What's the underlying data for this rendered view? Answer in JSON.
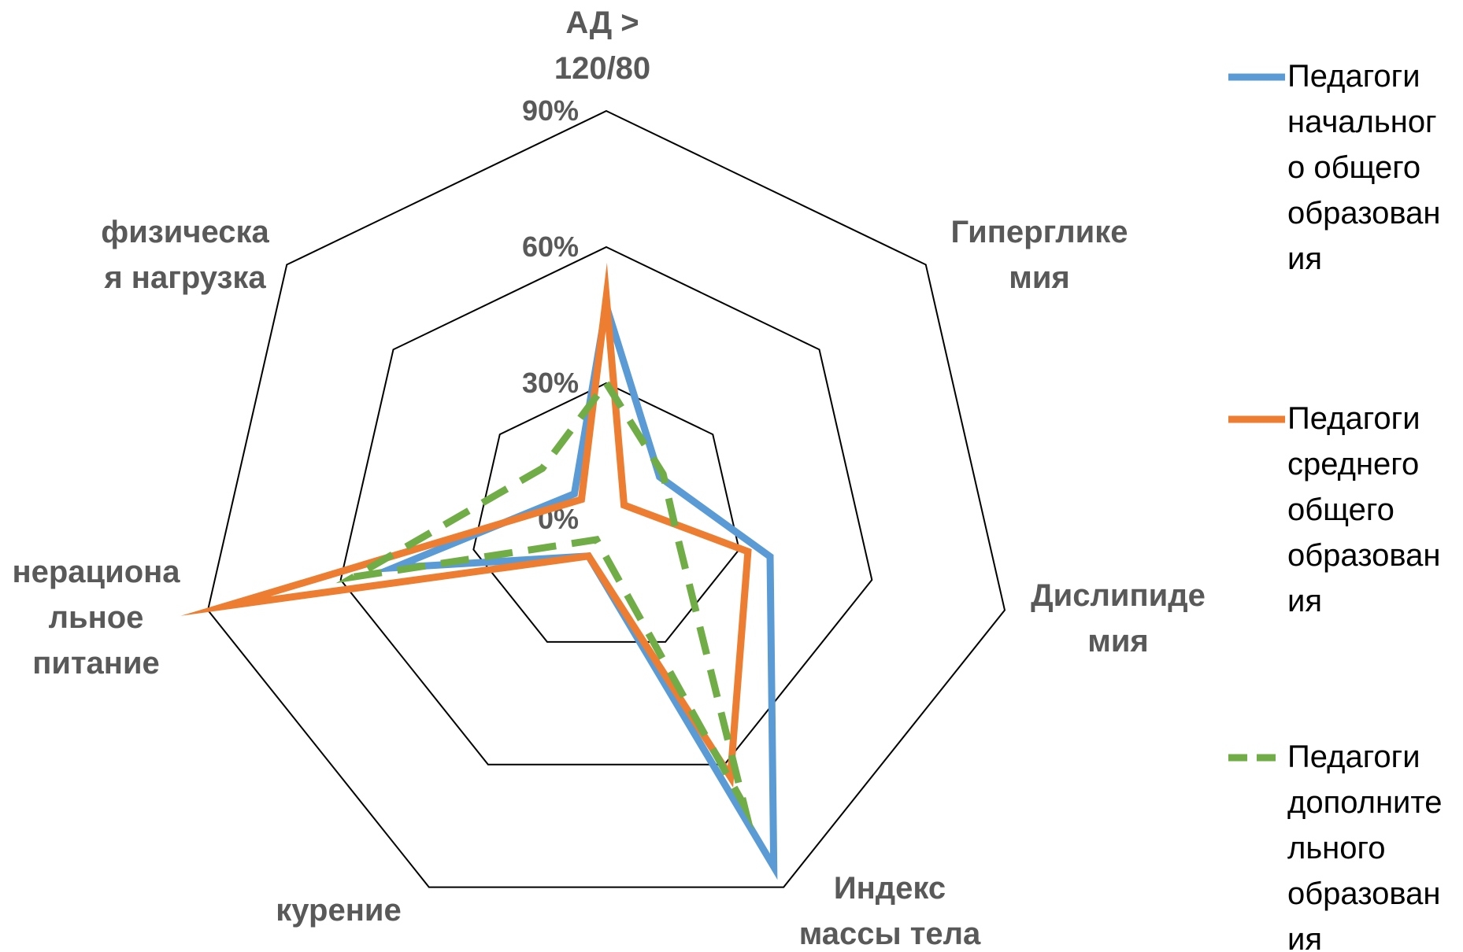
{
  "chart_data": {
    "type": "radar",
    "categories": [
      [
        "АД >",
        "120/80"
      ],
      [
        "Гиперглике",
        "мия"
      ],
      [
        "Дислипиде",
        "мия"
      ],
      [
        "Индекс",
        "массы тела"
      ],
      [
        "курение"
      ],
      [
        "нерациона",
        "льное",
        "питание"
      ],
      [
        "физическа",
        "я нагрузка"
      ]
    ],
    "rticks": [
      "0%",
      "30%",
      "60%",
      "90%"
    ],
    "rlim": [
      0,
      90
    ],
    "tick_values": [
      0,
      30,
      60,
      90
    ],
    "grid": true,
    "legend_position": "right",
    "series": [
      {
        "name": [
          "Педагоги",
          "начальног",
          "о общего",
          "образован",
          "ия"
        ],
        "values": [
          47,
          15,
          37,
          85,
          9,
          48,
          9
        ],
        "color": "#5B9BD5",
        "dash": "solid"
      },
      {
        "name": [
          "Педагоги",
          "среднего",
          "общего",
          "образован",
          "ия"
        ],
        "values": [
          49,
          5,
          32,
          63,
          9,
          86,
          7
        ],
        "color": "#ED7D31",
        "dash": "solid"
      },
      {
        "name": [
          "Педагоги",
          "дополните",
          "льного",
          "образован",
          "ия"
        ],
        "values": [
          30,
          16,
          16,
          70,
          5,
          57,
          18
        ],
        "color": "#70AD47",
        "dash": "dashed"
      }
    ]
  }
}
